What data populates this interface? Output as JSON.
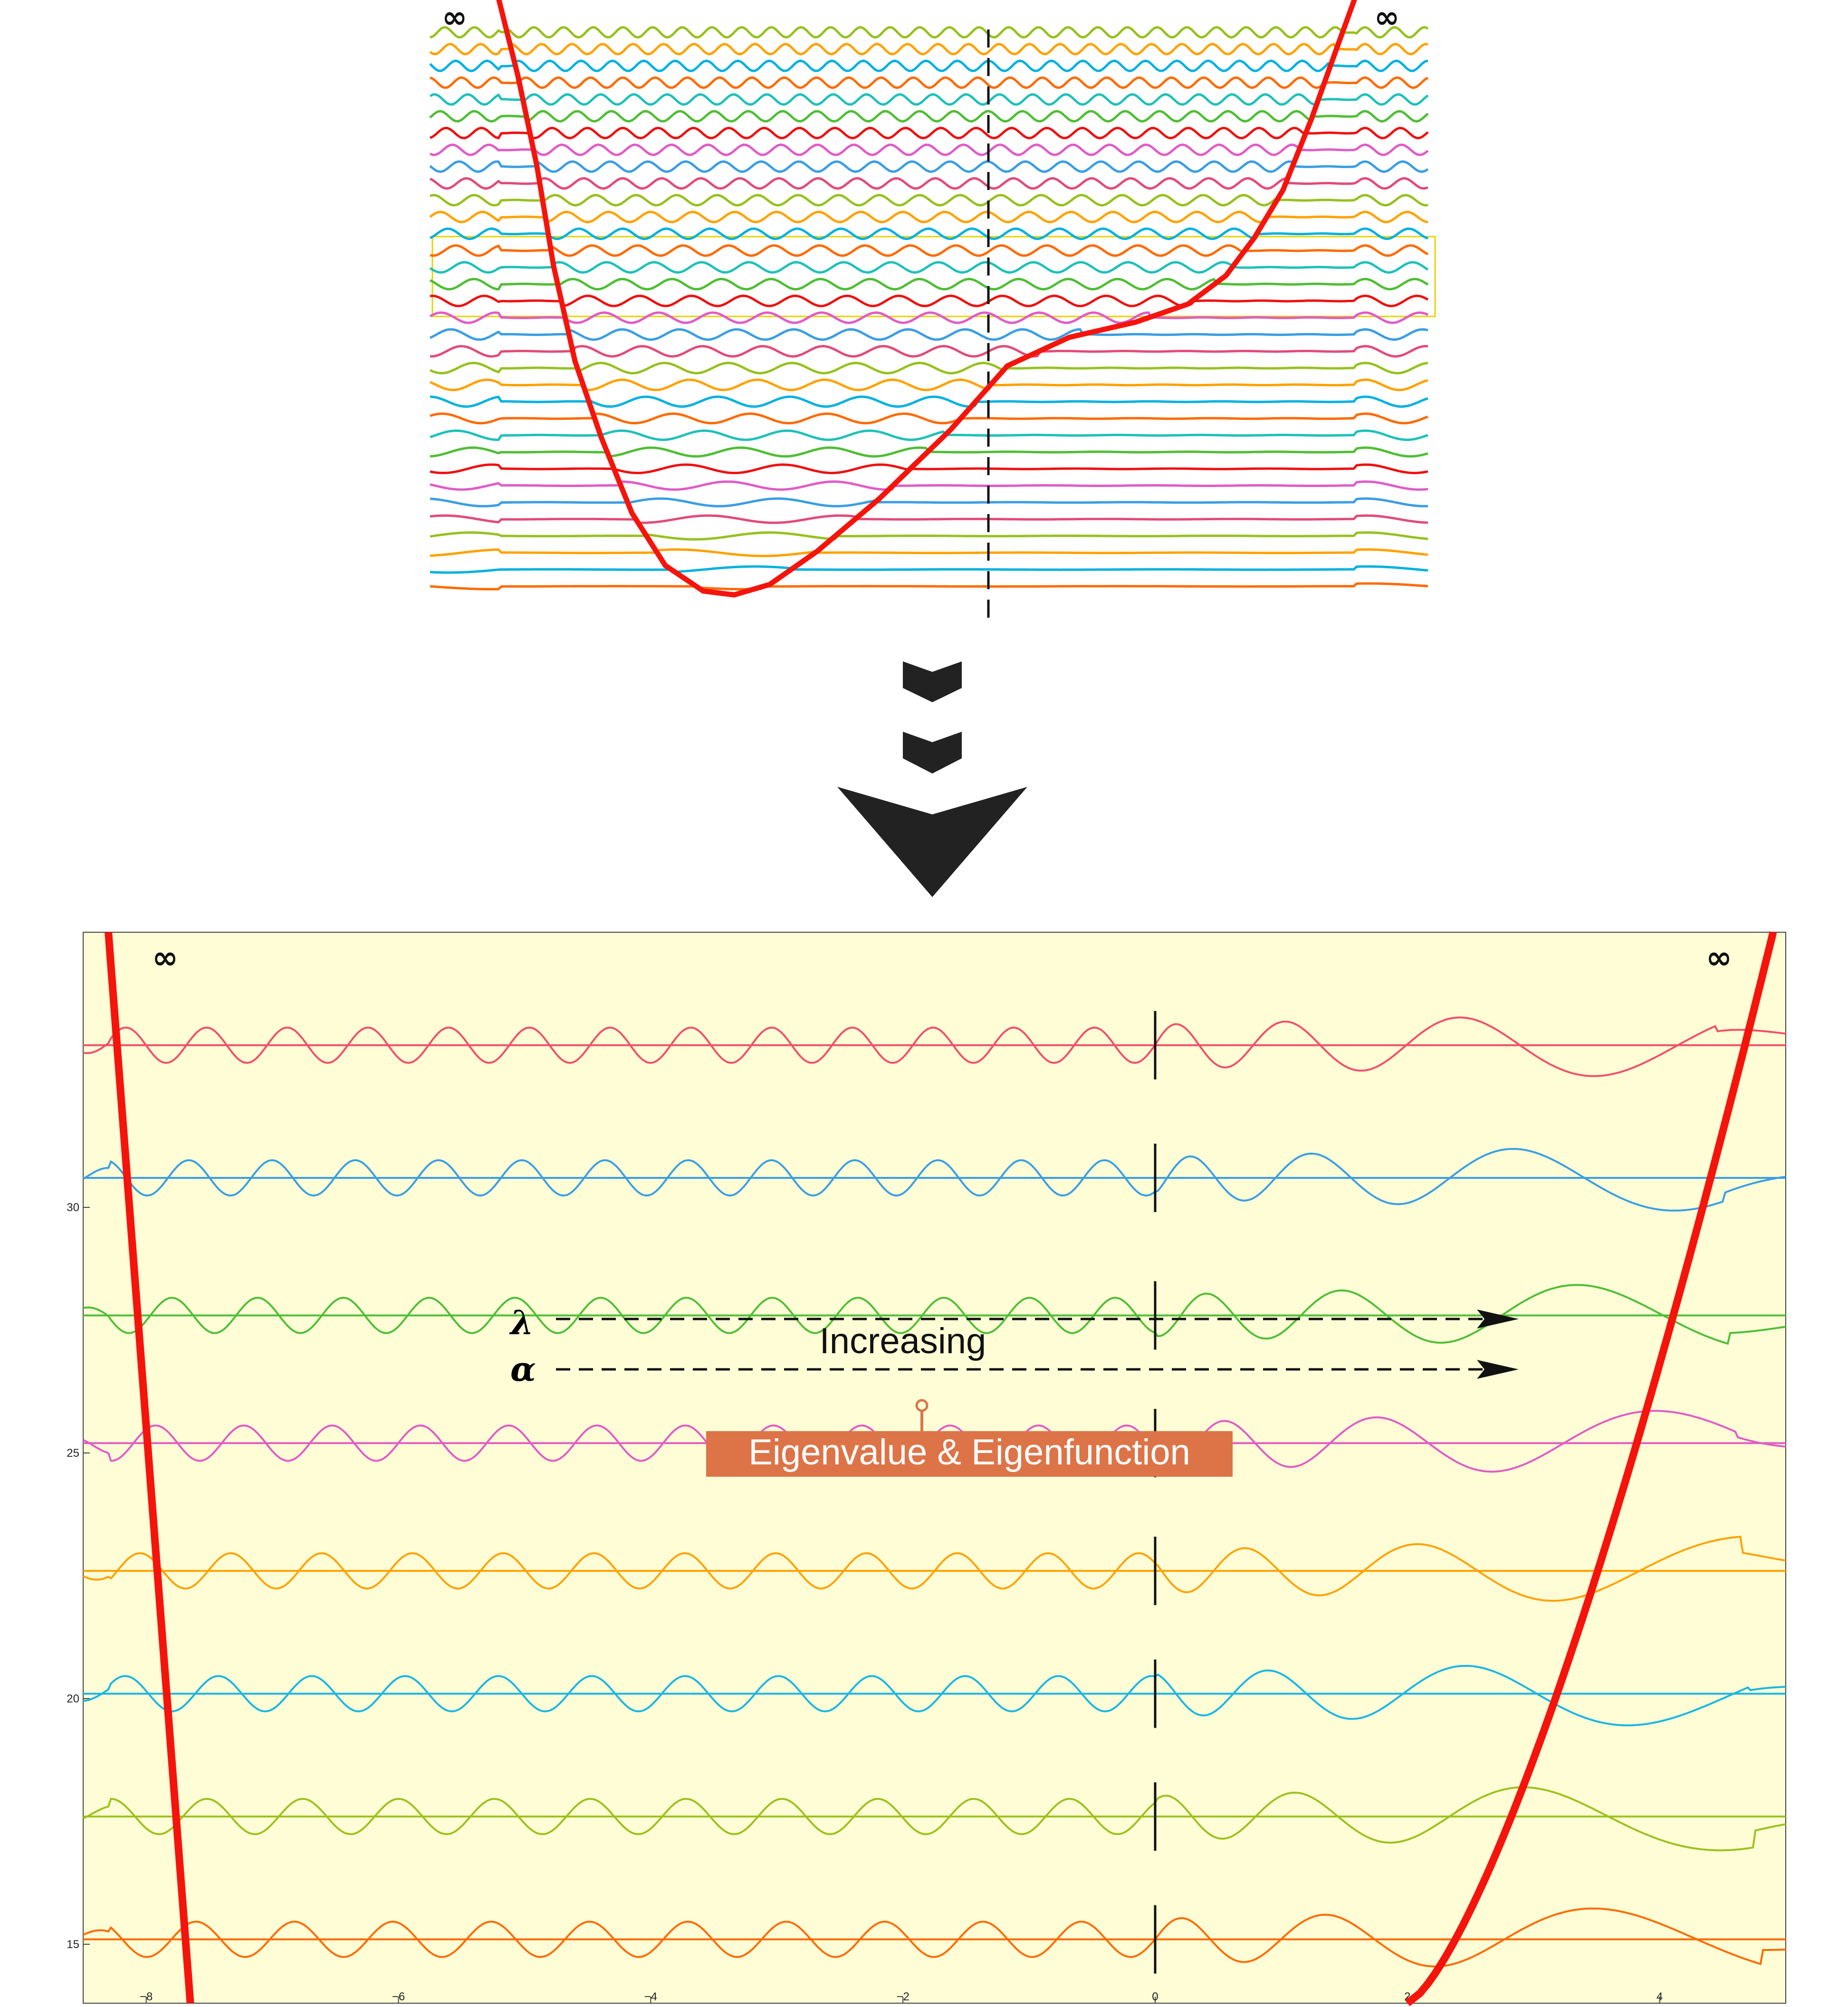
{
  "colors": {
    "potential": "#f5140c",
    "panel_background": "#fefdd6",
    "badge_background": "#dd7448",
    "badge_text": "#ffffff",
    "highlight_box": "#e8d300",
    "arrow_chevron": "#222222",
    "dashed_axis": "#111111",
    "palette": [
      "#ff6a00",
      "#00b1e0",
      "#ffa200",
      "#96c11e",
      "#e24b79",
      "#3a9ee3",
      "#e05cc6",
      "#ef1010",
      "#4fbe35",
      "#1ec1b8"
    ]
  },
  "icons": {
    "chevron_small": "chevron-down-icon",
    "chevron_large": "arrowhead-down-icon"
  },
  "chart_data": [
    {
      "type": "line",
      "description_kind": "overview",
      "infinity_left": "∞",
      "infinity_right": "∞",
      "num_eigenfunctions": 34,
      "highlighted_range_levels": [
        16,
        21
      ],
      "potential_min_x": -3.4,
      "dashed_line_x": 0
    },
    {
      "type": "line",
      "description_kind": "detail",
      "xlim": [
        -8.5,
        5
      ],
      "ylim": [
        13.8,
        35.6
      ],
      "xticks": [
        -8,
        -6,
        -4,
        -2,
        0,
        2,
        4
      ],
      "yticks": [
        15,
        20,
        25,
        30
      ],
      "xtick_labels": [
        "−8",
        "−6",
        "−4",
        "−2",
        "0",
        "2",
        "4"
      ],
      "ytick_labels": [
        "15",
        "20",
        "25",
        "30"
      ],
      "infinity_left": "∞",
      "infinity_right": "∞",
      "eigenvalues": [
        15.1,
        17.6,
        20.1,
        22.6,
        25.2,
        27.8,
        30.6,
        33.3
      ],
      "series_colors": [
        "#ff6a00",
        "#9bc21c",
        "#1ab6e3",
        "#ffa200",
        "#e05cc6",
        "#4fbe35",
        "#3a9ee3",
        "#f0506a"
      ],
      "dashed_line_x": 0,
      "lambda_symbol": "λ",
      "alpha_symbol": "α",
      "increasing_label": "Increasing",
      "badge_label": "Eigenvalue & Eigenfunction"
    }
  ]
}
